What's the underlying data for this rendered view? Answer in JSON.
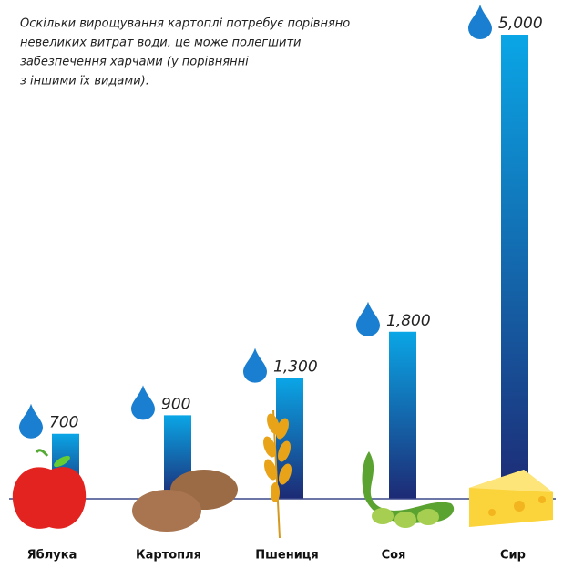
{
  "chart_data": {
    "type": "bar",
    "annotation": [
      "Оскільки вирощування картоплі потребує порівняно",
      "невеликих витрат води, це може полегшити",
      "забезпечення харчами (у порівнянні",
      "з іншими їх видами)."
    ],
    "categories": [
      "Яблука",
      "Картопля",
      "Пшениця",
      "Соя",
      "Сир"
    ],
    "values": [
      700,
      900,
      1300,
      1800,
      5000
    ],
    "value_labels": [
      "700",
      "900",
      "1,300",
      "1,800",
      "5,000"
    ],
    "gradient": [
      "#0aa6e6",
      "#1d2a74"
    ],
    "ylim": [
      0,
      5000
    ]
  }
}
